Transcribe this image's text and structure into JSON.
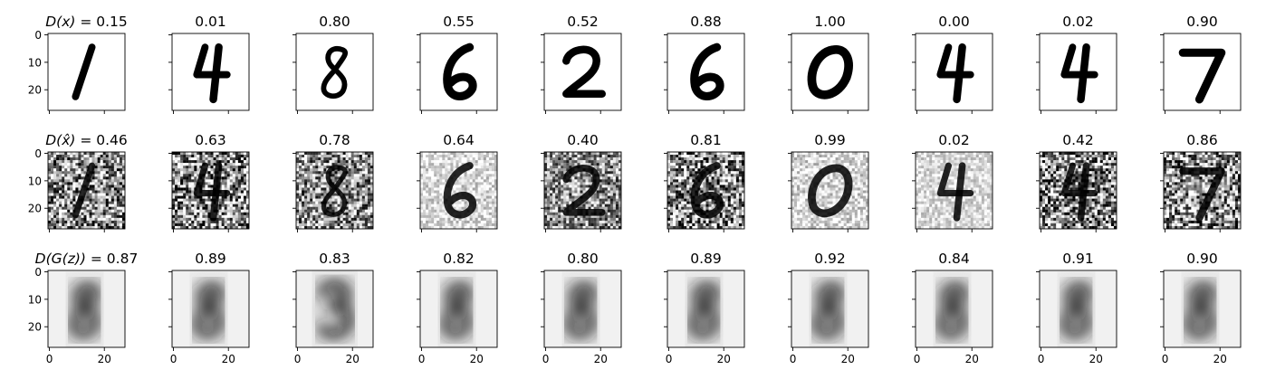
{
  "chart_data": {
    "type": "image_grid",
    "layout": {
      "rows": 3,
      "cols": 10
    },
    "image_size": [
      28,
      28
    ],
    "colormap": "gray_r",
    "x_ticks": [
      0,
      20
    ],
    "y_ticks": [
      0,
      10,
      20
    ],
    "rows": [
      {
        "label_prefix_math": "D(x)",
        "label_eq": " = ",
        "titles": [
          "0.15",
          "0.01",
          "0.80",
          "0.55",
          "0.52",
          "0.88",
          "1.00",
          "0.00",
          "0.02",
          "0.90"
        ],
        "digits": [
          "1",
          "4",
          "8",
          "6",
          "2",
          "6",
          "0",
          "4",
          "4",
          "7"
        ],
        "style": "clean"
      },
      {
        "label_prefix_math": "D(x̂)",
        "label_eq": " = ",
        "titles": [
          "0.46",
          "0.63",
          "0.78",
          "0.64",
          "0.40",
          "0.81",
          "0.99",
          "0.02",
          "0.42",
          "0.86"
        ],
        "digits": [
          "1",
          "4",
          "8",
          "6",
          "2",
          "6",
          "0",
          "4",
          "4",
          "7"
        ],
        "style": "noisy"
      },
      {
        "label_prefix_math": "D(G(z))",
        "label_eq": " = ",
        "titles": [
          "0.87",
          "0.89",
          "0.83",
          "0.82",
          "0.80",
          "0.89",
          "0.92",
          "0.84",
          "0.91",
          "0.90"
        ],
        "digits": [
          "8",
          "8",
          "3",
          "8",
          "8",
          "8",
          "8",
          "8",
          "8",
          "8"
        ],
        "style": "blurry"
      }
    ]
  }
}
